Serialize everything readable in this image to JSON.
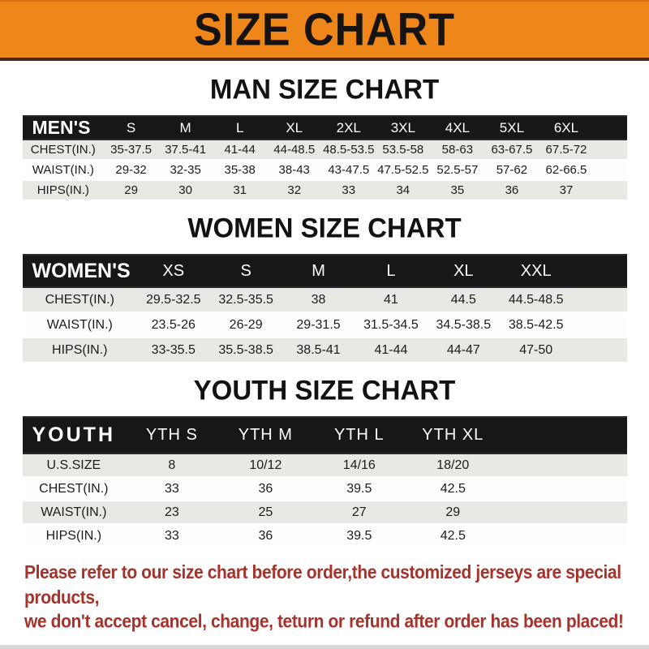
{
  "banner": {
    "title": "SIZE CHART"
  },
  "colors": {
    "banner_bg": "#EE8619",
    "band_bg": "#171717",
    "row_alt_bg": "#E9E8E5",
    "disclaimer": "#A5322B"
  },
  "sections": [
    {
      "title": "MAN SIZE CHART",
      "corner_label": "MEN'S",
      "columns": [
        "S",
        "M",
        "L",
        "XL",
        "2XL",
        "3XL",
        "4XL",
        "5XL",
        "6XL"
      ],
      "rows": [
        {
          "label": "CHEST(IN.)",
          "values": [
            "35-37.5",
            "37.5-41",
            "41-44",
            "44-48.5",
            "48.5-53.5",
            "53.5-58",
            "58-63",
            "63-67.5",
            "67.5-72"
          ]
        },
        {
          "label": "WAIST(IN.)",
          "values": [
            "29-32",
            "32-35",
            "35-38",
            "38-43",
            "43-47.5",
            "47.5-52.5",
            "52.5-57",
            "57-62",
            "62-66.5"
          ]
        },
        {
          "label": "HIPS(IN.)",
          "values": [
            "29",
            "30",
            "31",
            "32",
            "33",
            "34",
            "35",
            "36",
            "37"
          ]
        }
      ]
    },
    {
      "title": "WOMEN SIZE CHART",
      "corner_label": "WOMEN'S",
      "columns": [
        "XS",
        "S",
        "M",
        "L",
        "XL",
        "XXL"
      ],
      "rows": [
        {
          "label": "CHEST(IN.)",
          "values": [
            "29.5-32.5",
            "32.5-35.5",
            "38",
            "41",
            "44.5",
            "44.5-48.5"
          ]
        },
        {
          "label": "WAIST(IN.)",
          "values": [
            "23.5-26",
            "26-29",
            "29-31.5",
            "31.5-34.5",
            "34.5-38.5",
            "38.5-42.5"
          ]
        },
        {
          "label": "HIPS(IN.)",
          "values": [
            "33-35.5",
            "35.5-38.5",
            "38.5-41",
            "41-44",
            "44-47",
            "47-50"
          ]
        }
      ]
    },
    {
      "title": "YOUTH SIZE CHART",
      "corner_label": "YOUTH",
      "columns": [
        "YTH S",
        "YTH M",
        "YTH L",
        "YTH XL"
      ],
      "rows": [
        {
          "label": "U.S.SIZE",
          "values": [
            "8",
            "10/12",
            "14/16",
            "18/20"
          ]
        },
        {
          "label": "CHEST(IN.)",
          "values": [
            "33",
            "36",
            "39.5",
            "42.5"
          ]
        },
        {
          "label": "WAIST(IN.)",
          "values": [
            "23",
            "25",
            "27",
            "29"
          ]
        },
        {
          "label": "HIPS(IN.)",
          "values": [
            "33",
            "36",
            "39.5",
            "42.5"
          ]
        }
      ]
    }
  ],
  "disclaimer": {
    "line1": "Please refer to our size chart before order,the customized jerseys are special products,",
    "line2": "we don't accept cancel, change, teturn or refund after order has been placed!"
  }
}
